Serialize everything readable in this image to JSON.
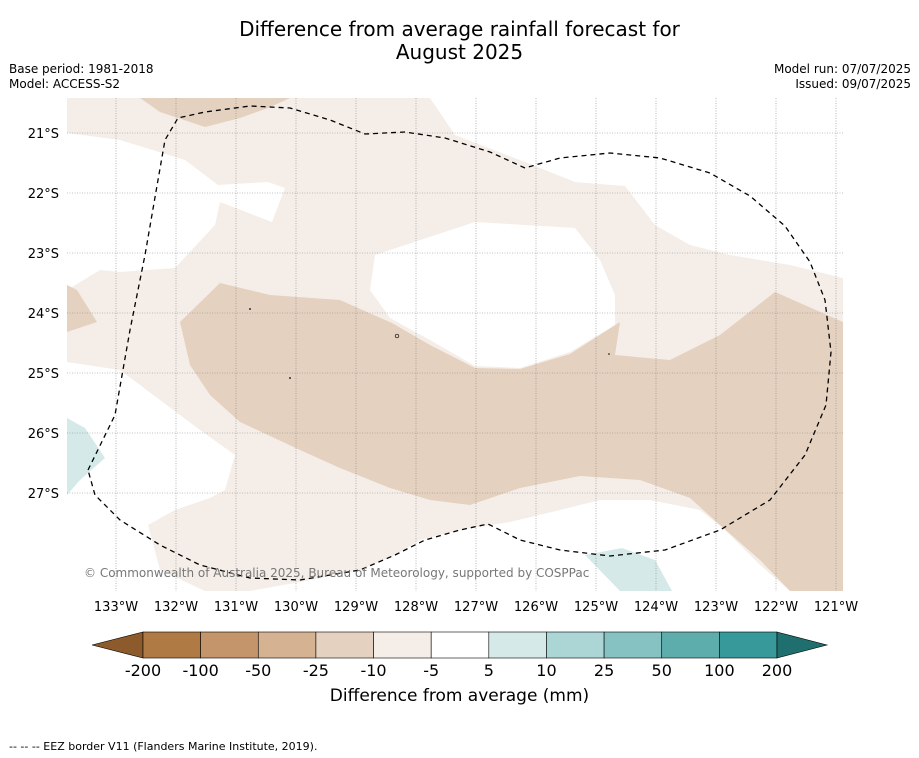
{
  "title_line1": "Difference from average rainfall forecast for",
  "title_line2": "August 2025",
  "base_period": "Base period: 1981-2018",
  "model": "Model: ACCESS-S2",
  "model_run": "Model run: 07/07/2025",
  "issued": "Issued: 09/07/2025",
  "copyright": "© Commonwealth of Australia 2025, Bureau of Meteorology, supported by COSPPac",
  "lat_labels": [
    "21°S",
    "22°S",
    "23°S",
    "24°S",
    "25°S",
    "26°S",
    "27°S"
  ],
  "lon_labels": [
    "133°W",
    "132°W",
    "131°W",
    "130°W",
    "129°W",
    "128°W",
    "127°W",
    "126°W",
    "125°W",
    "124°W",
    "123°W",
    "122°W",
    "121°W"
  ],
  "colorbar": {
    "ticks": [
      "-200",
      "-100",
      "-50",
      "-25",
      "-10",
      "-5",
      "5",
      "10",
      "25",
      "50",
      "100",
      "200"
    ],
    "colors": [
      "#8c5a2b",
      "#b07a44",
      "#c4956a",
      "#d5b291",
      "#e4d1bf",
      "#f5eee8",
      "#ffffff",
      "#d4e9e8",
      "#acd6d5",
      "#85c2c1",
      "#5eadad",
      "#379999",
      "#1f6f6f"
    ],
    "label": "Difference from average (mm)"
  },
  "footnote": "--  --  -- EEZ border V11 (Flanders Marine Institute, 2019)."
}
